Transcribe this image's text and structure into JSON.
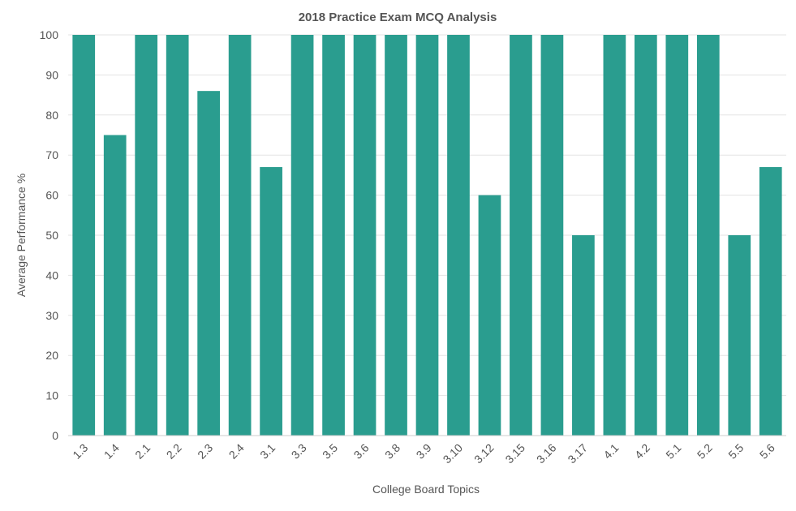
{
  "chart_data": {
    "type": "bar",
    "title": "2018 Practice Exam MCQ Analysis",
    "xlabel": "College Board Topics",
    "ylabel": "Average Performance %",
    "ylim": [
      0,
      100
    ],
    "yticks": [
      0,
      10,
      20,
      30,
      40,
      50,
      60,
      70,
      80,
      90,
      100
    ],
    "grid": true,
    "bar_color": "#2a9d8f",
    "categories": [
      "1.3",
      "1.4",
      "2.1",
      "2.2",
      "2.3",
      "2.4",
      "3.1",
      "3.3",
      "3.5",
      "3.6",
      "3.8",
      "3.9",
      "3.10",
      "3.12",
      "3.15",
      "3.16",
      "3.17",
      "4.1",
      "4.2",
      "5.1",
      "5.2",
      "5.5",
      "5.6"
    ],
    "values": [
      100,
      75,
      100,
      100,
      86,
      100,
      67,
      100,
      100,
      100,
      100,
      100,
      100,
      60,
      100,
      100,
      50,
      100,
      100,
      100,
      100,
      50,
      67
    ]
  }
}
